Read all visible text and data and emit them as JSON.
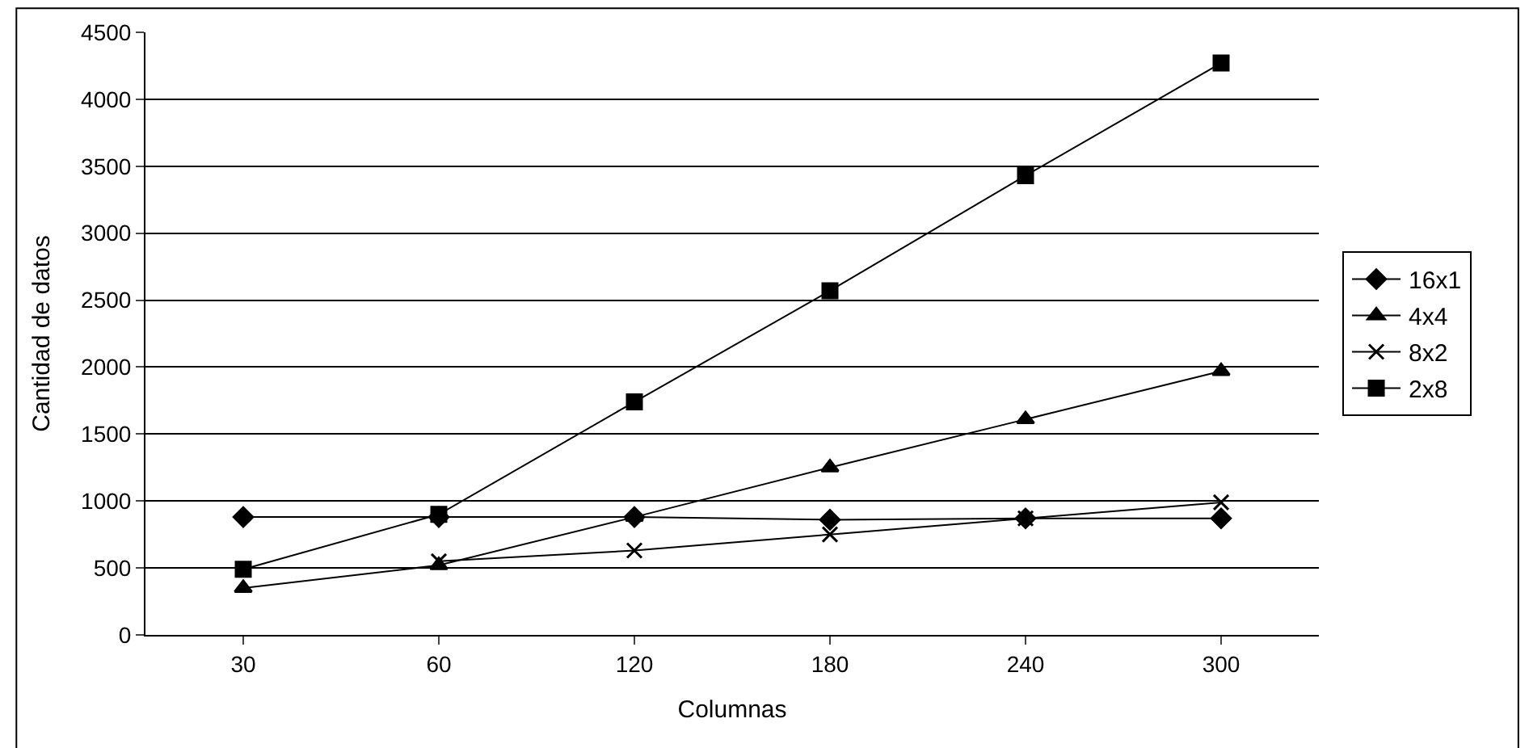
{
  "chart_data": {
    "type": "line",
    "xlabel": "Columnas",
    "ylabel": "Cantidad de datos",
    "categories": [
      "30",
      "60",
      "120",
      "180",
      "240",
      "300"
    ],
    "series": [
      {
        "name": "16x1",
        "color": "#000000",
        "marker": "diamond",
        "values": [
          880,
          880,
          880,
          860,
          870,
          870
        ]
      },
      {
        "name": "4x4",
        "color": "#000000",
        "marker": "triangle",
        "values": [
          350,
          520,
          880,
          1250,
          1610,
          1970
        ]
      },
      {
        "name": "8x2",
        "color": "#000000",
        "marker": "cross",
        "values": [
          null,
          550,
          630,
          750,
          870,
          990
        ]
      },
      {
        "name": "2x8",
        "color": "#000000",
        "marker": "square",
        "values": [
          490,
          900,
          1740,
          2570,
          3430,
          4270
        ]
      }
    ],
    "ylim": [
      0,
      4500
    ],
    "yticks": [
      0,
      500,
      1000,
      1500,
      2000,
      2500,
      3000,
      3500,
      4000,
      4500
    ],
    "grid": "y",
    "legend": "right",
    "line_style": "solid"
  }
}
